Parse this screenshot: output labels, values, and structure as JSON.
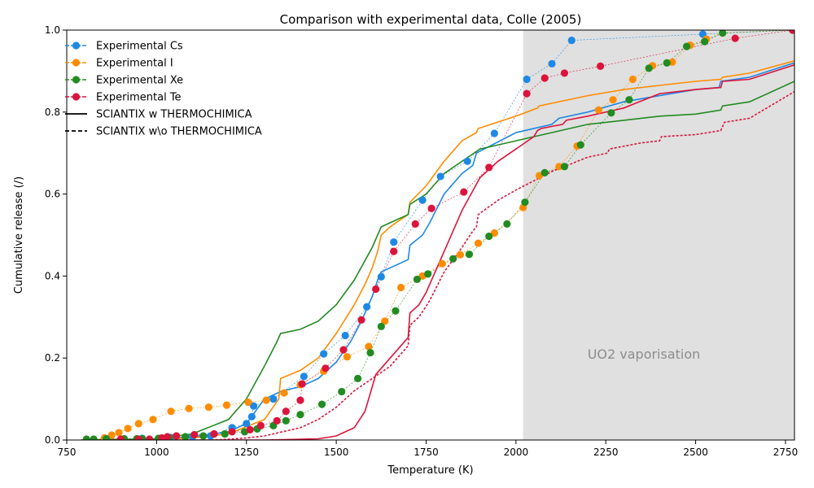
{
  "chart_data": {
    "type": "line",
    "title": "Comparison with experimental data, Colle (2005)",
    "xlabel": "Temperature (K)",
    "ylabel": "Cumulative release (/)",
    "xlim": [
      750,
      2775
    ],
    "ylim": [
      0,
      1.0
    ],
    "xticks": [
      750,
      1000,
      1250,
      1500,
      1750,
      2000,
      2250,
      2500,
      2750
    ],
    "yticks": [
      0.0,
      0.2,
      0.4,
      0.6,
      0.8,
      1.0
    ],
    "grid": false,
    "legend_position": "top-left",
    "shaded_region": {
      "x": [
        2020,
        2775
      ],
      "label": "UO2 vaporisation",
      "color": "#e0e0e0"
    },
    "legend_entries": [
      {
        "label": "Experimental Cs",
        "color": "#1e88e5",
        "style": "dashed-marker"
      },
      {
        "label": "Experimental I",
        "color": "#ff8c00",
        "style": "dashed-marker"
      },
      {
        "label": "Experimental Xe",
        "color": "#228b22",
        "style": "dashed-marker"
      },
      {
        "label": "Experimental Te",
        "color": "#dc143c",
        "style": "dashed-marker"
      },
      {
        "label": "SCIANTIX w THERMOCHIMICA",
        "color": "#000000",
        "style": "solid"
      },
      {
        "label": "SCIANTIX w\\o THERMOCHIMICA",
        "color": "#000000",
        "style": "dashed"
      }
    ],
    "series": [
      {
        "name": "Experimental Cs",
        "kind": "experimental",
        "color": "#1e88e5",
        "x": [
          860,
          960,
          1040,
          1100,
          1150,
          1210,
          1250,
          1265,
          1270,
          1325,
          1410,
          1465,
          1525,
          1585,
          1625,
          1660,
          1740,
          1790,
          1865,
          1940,
          2030,
          2100,
          2155,
          2520,
          2770
        ],
        "y": [
          0.003,
          0.004,
          0.006,
          0.008,
          0.01,
          0.03,
          0.04,
          0.057,
          0.083,
          0.1,
          0.155,
          0.21,
          0.255,
          0.325,
          0.398,
          0.483,
          0.585,
          0.643,
          0.68,
          0.748,
          0.88,
          0.918,
          0.975,
          0.99,
          1.0
        ]
      },
      {
        "name": "Experimental I",
        "kind": "experimental",
        "color": "#ff8c00",
        "x": [
          855,
          875,
          895,
          920,
          950,
          990,
          1040,
          1090,
          1145,
          1195,
          1255,
          1305,
          1355,
          1400,
          1465,
          1530,
          1590,
          1635,
          1680,
          1740,
          1795,
          1845,
          1895,
          1940,
          2020,
          2065,
          2120,
          2170,
          2230,
          2270,
          2325,
          2380,
          2435,
          2485,
          2530,
          2575,
          2770
        ],
        "y": [
          0.005,
          0.012,
          0.018,
          0.028,
          0.04,
          0.05,
          0.07,
          0.077,
          0.08,
          0.085,
          0.092,
          0.097,
          0.115,
          0.135,
          0.168,
          0.203,
          0.228,
          0.29,
          0.372,
          0.4,
          0.43,
          0.452,
          0.48,
          0.505,
          0.567,
          0.645,
          0.667,
          0.717,
          0.805,
          0.83,
          0.88,
          0.913,
          0.922,
          0.963,
          0.978,
          0.993,
          1.0
        ]
      },
      {
        "name": "Experimental Xe",
        "kind": "experimental",
        "color": "#228b22",
        "x": [
          805,
          825,
          860,
          910,
          945,
          960,
          1005,
          1035,
          1080,
          1130,
          1190,
          1245,
          1280,
          1325,
          1360,
          1400,
          1460,
          1515,
          1560,
          1595,
          1625,
          1665,
          1725,
          1755,
          1825,
          1870,
          1925,
          1975,
          2025,
          2080,
          2135,
          2180,
          2265,
          2315,
          2370,
          2420,
          2475,
          2525,
          2575,
          2770
        ],
        "y": [
          0.002,
          0.002,
          0.003,
          0.003,
          0.003,
          0.003,
          0.004,
          0.006,
          0.008,
          0.01,
          0.015,
          0.02,
          0.027,
          0.035,
          0.047,
          0.062,
          0.087,
          0.118,
          0.15,
          0.213,
          0.277,
          0.315,
          0.392,
          0.405,
          0.442,
          0.453,
          0.497,
          0.527,
          0.58,
          0.652,
          0.667,
          0.72,
          0.798,
          0.83,
          0.907,
          0.92,
          0.96,
          0.972,
          0.993,
          1.0
        ]
      },
      {
        "name": "Experimental Te",
        "kind": "experimental",
        "color": "#dc143c",
        "x": [
          900,
          950,
          980,
          1015,
          1030,
          1055,
          1105,
          1160,
          1210,
          1260,
          1290,
          1335,
          1360,
          1400,
          1405,
          1470,
          1520,
          1570,
          1610,
          1660,
          1720,
          1765,
          1855,
          1925,
          2030,
          2080,
          2135,
          2235,
          2610,
          2770
        ],
        "y": [
          0.002,
          0.002,
          0.002,
          0.005,
          0.008,
          0.01,
          0.013,
          0.015,
          0.02,
          0.025,
          0.035,
          0.047,
          0.07,
          0.097,
          0.137,
          0.175,
          0.22,
          0.293,
          0.368,
          0.46,
          0.527,
          0.565,
          0.605,
          0.665,
          0.845,
          0.883,
          0.895,
          0.912,
          0.98,
          1.0
        ]
      },
      {
        "name": "SCIANTIX w THERMOCHIMICA Cs",
        "kind": "model-solid",
        "color": "#1e88e5",
        "x": [
          790,
          1000,
          1100,
          1200,
          1250,
          1300,
          1350,
          1400,
          1450,
          1500,
          1540,
          1570,
          1600,
          1615,
          1625,
          1650,
          1700,
          1705,
          1740,
          1760,
          1800,
          1850,
          1880,
          1890,
          2000,
          2100,
          2120,
          2200,
          2300,
          2400,
          2500,
          2565,
          2570,
          2650,
          2775
        ],
        "y": [
          0.0,
          0.002,
          0.008,
          0.02,
          0.04,
          0.1,
          0.12,
          0.13,
          0.15,
          0.19,
          0.24,
          0.29,
          0.35,
          0.39,
          0.41,
          0.42,
          0.44,
          0.475,
          0.5,
          0.53,
          0.6,
          0.65,
          0.67,
          0.7,
          0.75,
          0.77,
          0.785,
          0.8,
          0.825,
          0.84,
          0.855,
          0.86,
          0.875,
          0.885,
          0.92
        ]
      },
      {
        "name": "SCIANTIX w THERMOCHIMICA I",
        "kind": "model-solid",
        "color": "#ff8c00",
        "x": [
          790,
          1000,
          1100,
          1200,
          1300,
          1340,
          1345,
          1400,
          1450,
          1500,
          1550,
          1580,
          1600,
          1615,
          1625,
          1650,
          1700,
          1705,
          1750,
          1800,
          1850,
          1890,
          1895,
          2000,
          2060,
          2065,
          2200,
          2300,
          2400,
          2500,
          2570,
          2575,
          2650,
          2775
        ],
        "y": [
          0.0,
          0.002,
          0.005,
          0.015,
          0.05,
          0.1,
          0.15,
          0.17,
          0.2,
          0.26,
          0.33,
          0.38,
          0.42,
          0.46,
          0.5,
          0.52,
          0.55,
          0.58,
          0.62,
          0.68,
          0.73,
          0.75,
          0.76,
          0.79,
          0.81,
          0.815,
          0.84,
          0.855,
          0.865,
          0.875,
          0.88,
          0.885,
          0.895,
          0.925
        ]
      },
      {
        "name": "SCIANTIX w THERMOCHIMICA Xe",
        "kind": "model-solid",
        "color": "#228b22",
        "x": [
          790,
          1000,
          1100,
          1200,
          1250,
          1300,
          1335,
          1345,
          1400,
          1450,
          1500,
          1550,
          1600,
          1625,
          1650,
          1700,
          1705,
          1750,
          1800,
          1850,
          1900,
          2000,
          2100,
          2200,
          2300,
          2400,
          2500,
          2570,
          2575,
          2650,
          2775
        ],
        "y": [
          0.0,
          0.003,
          0.015,
          0.05,
          0.1,
          0.18,
          0.24,
          0.26,
          0.27,
          0.29,
          0.33,
          0.39,
          0.47,
          0.52,
          0.53,
          0.55,
          0.575,
          0.6,
          0.65,
          0.68,
          0.71,
          0.73,
          0.75,
          0.77,
          0.78,
          0.79,
          0.795,
          0.805,
          0.815,
          0.825,
          0.875
        ]
      },
      {
        "name": "SCIANTIX w THERMOCHIMICA Te",
        "kind": "model-solid",
        "color": "#dc143c",
        "x": [
          790,
          1300,
          1400,
          1450,
          1500,
          1550,
          1580,
          1600,
          1610,
          1620,
          1650,
          1700,
          1705,
          1730,
          1750,
          1800,
          1850,
          1900,
          1950,
          2000,
          2050,
          2060,
          2070,
          2100,
          2130,
          2140,
          2200,
          2300,
          2400,
          2500,
          2570,
          2575,
          2650,
          2775
        ],
        "y": [
          0.0,
          0.0,
          0.002,
          0.003,
          0.01,
          0.03,
          0.07,
          0.13,
          0.16,
          0.17,
          0.2,
          0.25,
          0.31,
          0.33,
          0.36,
          0.46,
          0.56,
          0.64,
          0.68,
          0.71,
          0.74,
          0.755,
          0.76,
          0.765,
          0.77,
          0.78,
          0.79,
          0.81,
          0.845,
          0.855,
          0.86,
          0.875,
          0.88,
          0.915
        ]
      },
      {
        "name": "SCIANTIX w\\o THERMOCHIMICA",
        "kind": "model-dashed",
        "color": "#dc143c",
        "x": [
          790,
          1150,
          1200,
          1250,
          1300,
          1350,
          1400,
          1450,
          1500,
          1550,
          1600,
          1650,
          1700,
          1705,
          1730,
          1760,
          1800,
          1850,
          1880,
          1890,
          1895,
          1950,
          2000,
          2100,
          2200,
          2255,
          2260,
          2350,
          2400,
          2405,
          2500,
          2570,
          2580,
          2650,
          2775
        ],
        "y": [
          0.0,
          0.0,
          0.002,
          0.005,
          0.01,
          0.02,
          0.03,
          0.05,
          0.08,
          0.12,
          0.15,
          0.18,
          0.23,
          0.28,
          0.3,
          0.34,
          0.41,
          0.47,
          0.51,
          0.52,
          0.55,
          0.585,
          0.61,
          0.655,
          0.69,
          0.7,
          0.71,
          0.725,
          0.73,
          0.74,
          0.745,
          0.755,
          0.775,
          0.785,
          0.85
        ]
      }
    ]
  }
}
